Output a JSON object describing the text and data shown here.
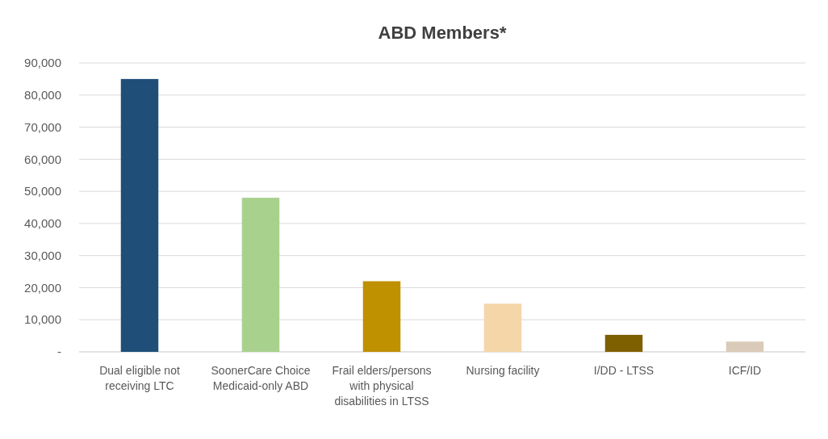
{
  "chart_data": {
    "type": "bar",
    "title": "ABD Members*",
    "categories": [
      "Dual eligible not receiving LTC",
      "SoonerCare Choice Medicaid-only ABD",
      "Frail elders/persons with physical disabilities in LTSS",
      "Nursing facility",
      "I/DD - LTSS",
      "ICF/ID"
    ],
    "values": [
      85000,
      48000,
      22000,
      15000,
      5300,
      3200
    ],
    "colors": [
      "#1f4e79",
      "#a9d18e",
      "#bf9000",
      "#f4d6a8",
      "#7f6000",
      "#d9cbb8"
    ],
    "ylim": [
      0,
      90000
    ],
    "yticks": [
      {
        "value": 0,
        "label": "-"
      },
      {
        "value": 10000,
        "label": "10,000"
      },
      {
        "value": 20000,
        "label": "20,000"
      },
      {
        "value": 30000,
        "label": "30,000"
      },
      {
        "value": 40000,
        "label": "40,000"
      },
      {
        "value": 50000,
        "label": "50,000"
      },
      {
        "value": 60000,
        "label": "60,000"
      },
      {
        "value": 70000,
        "label": "70,000"
      },
      {
        "value": 80000,
        "label": "80,000"
      },
      {
        "value": 90000,
        "label": "90,000"
      }
    ],
    "grid": "y"
  }
}
